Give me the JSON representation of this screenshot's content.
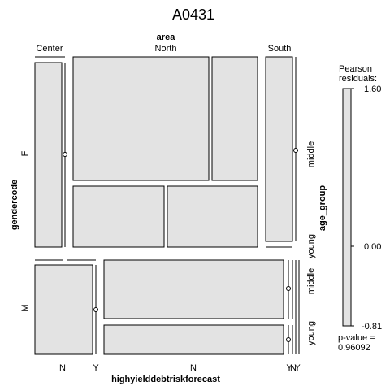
{
  "chart_data": {
    "type": "mosaic",
    "title": "A0431",
    "variables": {
      "area": {
        "label": "area",
        "levels": [
          "Center",
          "North",
          "South"
        ]
      },
      "gendercode": {
        "label": "gendercode",
        "levels": [
          "F",
          "M"
        ]
      },
      "age_group": {
        "label": "age_group",
        "levels": [
          "middle",
          "young"
        ]
      },
      "highyielddebtriskforecast": {
        "label": "highyielddebtriskforecast",
        "levels": [
          "N",
          "Y"
        ]
      }
    },
    "cell_labels": {
      "area_top": [
        "Center",
        "North",
        "South"
      ],
      "gender_left": [
        "F",
        "M"
      ],
      "age_right": [
        "middle",
        "young",
        "middle",
        "young"
      ],
      "risk_bottom": [
        "N",
        "Y",
        "N",
        "Y",
        "N",
        "Y"
      ]
    },
    "legend": {
      "title_line1": "Pearson",
      "title_line2": "residuals:",
      "max_label": "1.60",
      "zero_label": "0.00",
      "min_label": "-0.81",
      "range": [
        -0.81,
        1.6
      ],
      "pvalue_line1": "p-value =",
      "pvalue_line2": "0.96092"
    },
    "fill_color": "#e3e3e3",
    "border_color": "#000000"
  }
}
